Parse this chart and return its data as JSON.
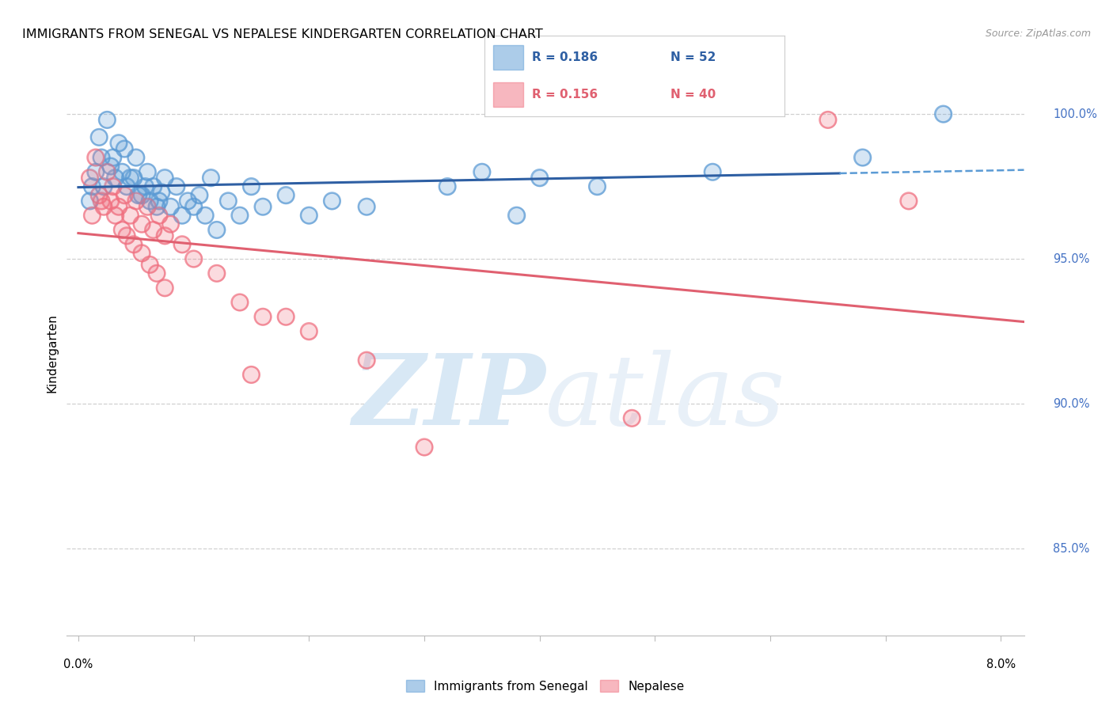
{
  "title": "IMMIGRANTS FROM SENEGAL VS NEPALESE KINDERGARTEN CORRELATION CHART",
  "source": "Source: ZipAtlas.com",
  "ylabel": "Kindergarten",
  "ytick_labels": [
    "85.0%",
    "90.0%",
    "95.0%",
    "100.0%"
  ],
  "ytick_values": [
    85.0,
    90.0,
    95.0,
    100.0
  ],
  "xmin": 0.0,
  "xmax": 8.0,
  "ymin": 82.0,
  "ymax": 101.5,
  "blue_color": "#5b9bd5",
  "pink_color": "#f07080",
  "blue_line_color": "#2e5fa3",
  "pink_line_color": "#e06070",
  "watermark_zip": "ZIP",
  "watermark_atlas": "atlas",
  "watermark_color": "#d8e8f5",
  "grid_color": "#d0d0d0",
  "right_label_color": "#4472c4",
  "title_fontsize": 11.5,
  "blue_x": [
    0.12,
    0.18,
    0.25,
    0.3,
    0.35,
    0.4,
    0.45,
    0.5,
    0.55,
    0.6,
    0.65,
    0.7,
    0.75,
    0.8,
    0.85,
    0.9,
    0.95,
    1.0,
    1.05,
    1.1,
    1.15,
    1.2,
    1.3,
    1.4,
    1.5,
    1.6,
    1.8,
    2.0,
    2.2,
    2.5,
    0.1,
    0.15,
    0.2,
    0.22,
    0.28,
    0.32,
    0.38,
    0.42,
    0.48,
    0.52,
    0.58,
    0.62,
    0.68,
    0.72,
    3.2,
    3.5,
    4.0,
    4.5,
    3.8,
    5.5,
    6.8,
    7.5
  ],
  "blue_y": [
    97.5,
    99.2,
    99.8,
    98.5,
    99.0,
    98.8,
    97.8,
    98.5,
    97.2,
    98.0,
    97.5,
    97.0,
    97.8,
    96.8,
    97.5,
    96.5,
    97.0,
    96.8,
    97.2,
    96.5,
    97.8,
    96.0,
    97.0,
    96.5,
    97.5,
    96.8,
    97.2,
    96.5,
    97.0,
    96.8,
    97.0,
    98.0,
    98.5,
    97.5,
    98.2,
    97.8,
    98.0,
    97.5,
    97.8,
    97.2,
    97.5,
    97.0,
    96.8,
    97.3,
    97.5,
    98.0,
    97.8,
    97.5,
    96.5,
    98.0,
    98.5,
    100.0
  ],
  "pink_x": [
    0.1,
    0.15,
    0.2,
    0.25,
    0.3,
    0.35,
    0.4,
    0.45,
    0.5,
    0.55,
    0.6,
    0.65,
    0.7,
    0.75,
    0.8,
    0.9,
    1.0,
    1.2,
    1.4,
    1.6,
    0.12,
    0.18,
    0.22,
    0.28,
    0.32,
    0.38,
    0.42,
    0.48,
    0.55,
    0.62,
    0.68,
    0.75,
    2.0,
    2.5,
    1.8,
    1.5,
    3.0,
    4.8,
    6.5,
    7.2
  ],
  "pink_y": [
    97.8,
    98.5,
    97.0,
    98.0,
    97.5,
    96.8,
    97.2,
    96.5,
    97.0,
    96.2,
    96.8,
    96.0,
    96.5,
    95.8,
    96.2,
    95.5,
    95.0,
    94.5,
    93.5,
    93.0,
    96.5,
    97.2,
    96.8,
    97.0,
    96.5,
    96.0,
    95.8,
    95.5,
    95.2,
    94.8,
    94.5,
    94.0,
    92.5,
    91.5,
    93.0,
    91.0,
    88.5,
    89.5,
    99.8,
    97.0
  ]
}
